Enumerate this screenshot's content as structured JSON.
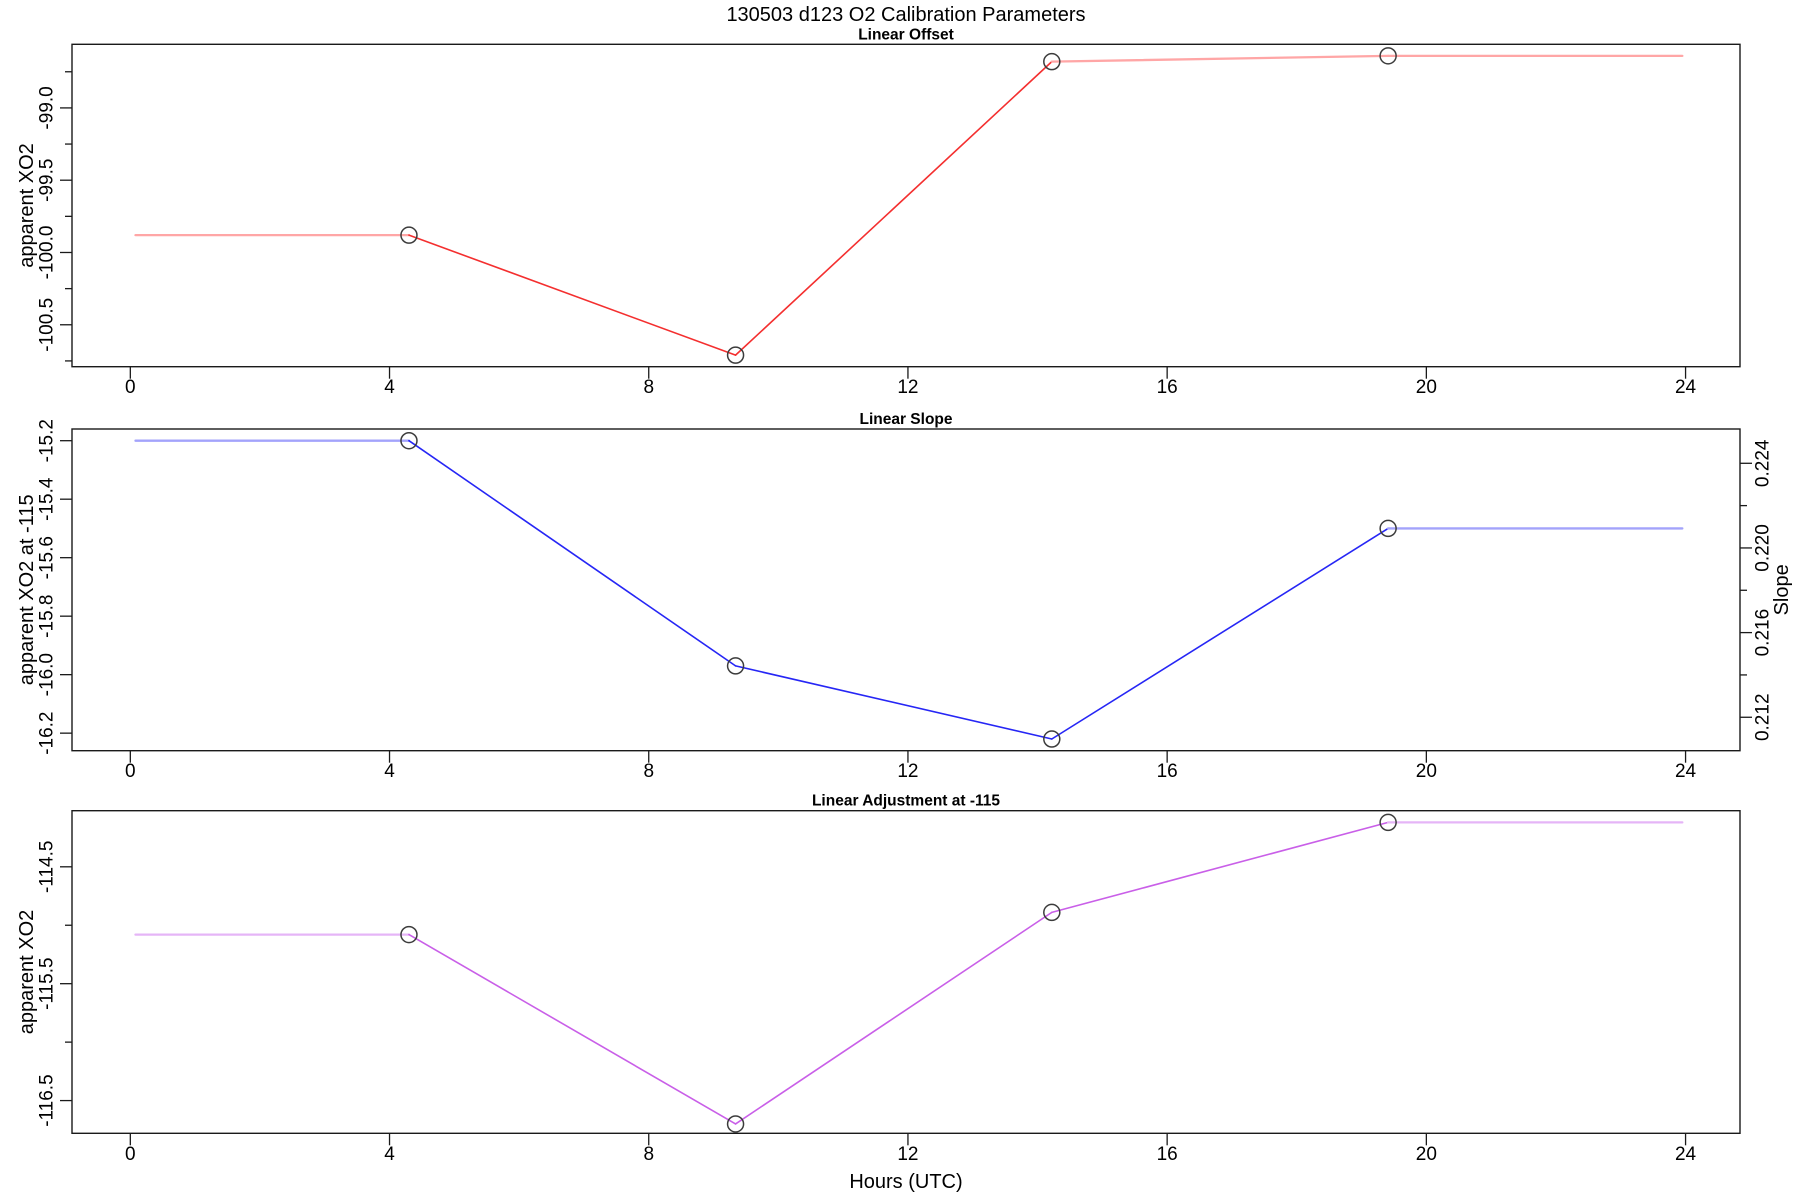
{
  "figure": {
    "main_title": "130503   d123   O2 Calibration Parameters",
    "background": "#ffffff",
    "axis_color": "#1a1a1a",
    "marker": {
      "shape": "open-circle",
      "radius": 8,
      "stroke": "#3c3c3c"
    }
  },
  "x_axis": {
    "label": "Hours (UTC)",
    "lim": [
      -0.9,
      24.84
    ],
    "ticks": [
      {
        "v": 0,
        "label": "0"
      },
      {
        "v": 4,
        "label": "4"
      },
      {
        "v": 8,
        "label": "8"
      },
      {
        "v": 12,
        "label": "12"
      },
      {
        "v": 16,
        "label": "16"
      },
      {
        "v": 20,
        "label": "20"
      },
      {
        "v": 24,
        "label": "24"
      }
    ]
  },
  "chart_data": [
    {
      "type": "line",
      "title": "Linear Offset",
      "ylabel": "apparent XO2",
      "color": "#f42f2f",
      "color_light": "#ffa6a6",
      "x": [
        4.3,
        9.34,
        14.22,
        19.41
      ],
      "y": [
        -99.88,
        -100.71,
        -98.68,
        -98.64
      ],
      "extend_x": [
        0.08,
        23.95
      ],
      "ylim": [
        -100.79,
        -98.56
      ],
      "yticks": [
        {
          "v": -99.0,
          "label": "-99.0"
        },
        {
          "v": -99.5,
          "label": "-99.5"
        },
        {
          "v": -100.0,
          "label": "-100.0"
        },
        {
          "v": -100.5,
          "label": "-100.5"
        }
      ],
      "yminor": [
        -98.75,
        -99.25,
        -99.75,
        -100.25,
        -100.75
      ]
    },
    {
      "type": "line",
      "title": "Linear Slope",
      "ylabel": "apparent XO2 at -115",
      "color": "#2626f5",
      "color_light": "#a3a3fb",
      "x": [
        4.3,
        9.34,
        14.22,
        19.41
      ],
      "y": [
        -15.2,
        -15.97,
        -16.22,
        -15.5
      ],
      "extend_x": [
        0.08,
        23.95
      ],
      "ylim": [
        -16.26,
        -15.16
      ],
      "yticks": [
        {
          "v": -15.2,
          "label": "-15.2"
        },
        {
          "v": -15.4,
          "label": "-15.4"
        },
        {
          "v": -15.6,
          "label": "-15.6"
        },
        {
          "v": -15.8,
          "label": "-15.8"
        },
        {
          "v": -16.0,
          "label": "-16.0"
        },
        {
          "v": -16.2,
          "label": "-16.2"
        }
      ],
      "yminor": [],
      "right_axis": {
        "label": "Slope",
        "lim": [
          0.21042,
          0.22562
        ],
        "values_on_right_scale": [
          0.2251,
          0.2144,
          0.211,
          0.221
        ],
        "ticks": [
          {
            "v": 0.212,
            "label": "0.212"
          },
          {
            "v": 0.216,
            "label": "0.216"
          },
          {
            "v": 0.22,
            "label": "0.220"
          },
          {
            "v": 0.224,
            "label": "0.224"
          }
        ],
        "minor": [
          0.214,
          0.218,
          0.222
        ]
      }
    },
    {
      "type": "line",
      "title": "Linear Adjustment at -115",
      "ylabel": "apparent XO2",
      "color": "#c95fe8",
      "color_light": "#e5b5f7",
      "x": [
        4.3,
        9.34,
        14.22,
        19.41
      ],
      "y": [
        -115.08,
        -116.7,
        -114.89,
        -114.12
      ],
      "extend_x": [
        0.08,
        23.95
      ],
      "ylim": [
        -116.78,
        -114.02
      ],
      "yticks": [
        {
          "v": -114.5,
          "label": "-114.5"
        },
        {
          "v": -115.5,
          "label": "-115.5"
        },
        {
          "v": -116.5,
          "label": "-116.5"
        }
      ],
      "yminor": [
        -115.0,
        -116.0
      ]
    }
  ]
}
